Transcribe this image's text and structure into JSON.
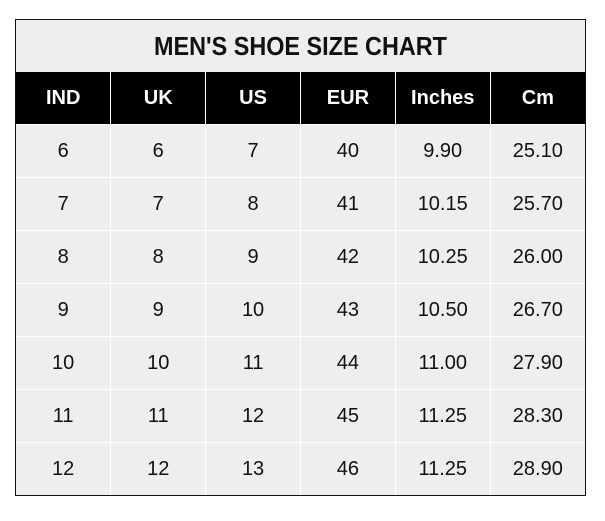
{
  "title": "MEN'S SHOE SIZE CHART",
  "headers": [
    "IND",
    "UK",
    "US",
    "EUR",
    "Inches",
    "Cm"
  ],
  "rows": [
    [
      "6",
      "6",
      "7",
      "40",
      "9.90",
      "25.10"
    ],
    [
      "7",
      "7",
      "8",
      "41",
      "10.15",
      "25.70"
    ],
    [
      "8",
      "8",
      "9",
      "42",
      "10.25",
      "26.00"
    ],
    [
      "9",
      "9",
      "10",
      "43",
      "10.50",
      "26.70"
    ],
    [
      "10",
      "10",
      "11",
      "44",
      "11.00",
      "27.90"
    ],
    [
      "11",
      "11",
      "12",
      "45",
      "11.25",
      "28.30"
    ],
    [
      "12",
      "12",
      "13",
      "46",
      "11.25",
      "28.90"
    ]
  ],
  "colors": {
    "header_bg": "#000000",
    "cell_bg": "#eeeeee",
    "grid": "#ffffff"
  }
}
